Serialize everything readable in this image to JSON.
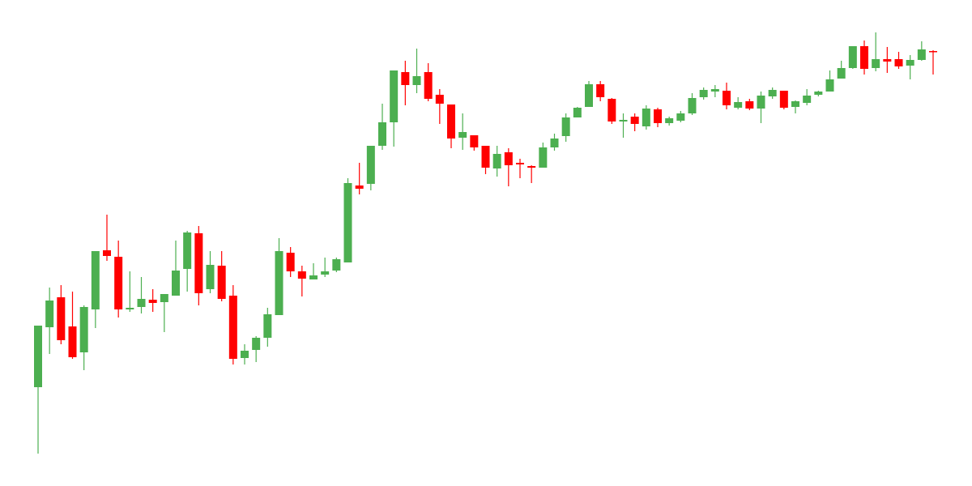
{
  "chart_data": {
    "type": "candlestick",
    "open": [
      122,
      196,
      233,
      197,
      165,
      218,
      291,
      283,
      218,
      221,
      230,
      227,
      235,
      268,
      312,
      243,
      272,
      235,
      158,
      168,
      183,
      211,
      288,
      265,
      255,
      261,
      266,
      276,
      371,
      373,
      420,
      449,
      511,
      495,
      511,
      483,
      471,
      430,
      433,
      420,
      392,
      412,
      399,
      395,
      393,
      418,
      432,
      455,
      468,
      496,
      478,
      450,
      456,
      444,
      465,
      448,
      451,
      460,
      480,
      487,
      488,
      467,
      475,
      466,
      481,
      488,
      468,
      473,
      483,
      487,
      503,
      516,
      543,
      516,
      527,
      527,
      519,
      526,
      537
    ],
    "high": [
      198,
      245,
      248,
      240,
      223,
      290,
      335,
      303,
      265,
      258,
      243,
      237,
      303,
      315,
      321,
      290,
      290,
      248,
      175,
      185,
      220,
      306,
      295,
      272,
      275,
      282,
      282,
      380,
      399,
      420,
      472,
      513,
      525,
      540,
      522,
      490,
      471,
      460,
      433,
      420,
      420,
      417,
      404,
      396,
      424,
      435,
      460,
      468,
      500,
      500,
      479,
      460,
      460,
      470,
      467,
      456,
      463,
      485,
      492,
      495,
      498,
      480,
      478,
      487,
      492,
      488,
      476,
      490,
      488,
      513,
      525,
      543,
      550,
      560,
      542,
      536,
      532,
      549,
      538
    ],
    "low": [
      40,
      163,
      175,
      157,
      143,
      195,
      278,
      208,
      215,
      213,
      215,
      190,
      235,
      240,
      223,
      238,
      228,
      150,
      150,
      153,
      172,
      211,
      258,
      234,
      255,
      258,
      264,
      276,
      360,
      365,
      415,
      419,
      470,
      485,
      475,
      447,
      417,
      415,
      414,
      385,
      382,
      370,
      380,
      374,
      393,
      414,
      425,
      455,
      468,
      475,
      447,
      430,
      438,
      440,
      443,
      445,
      449,
      458,
      477,
      480,
      465,
      465,
      464,
      448,
      478,
      465,
      460,
      470,
      481,
      487,
      503,
      515,
      508,
      512,
      510,
      515,
      502,
      525,
      508
    ],
    "close": [
      198,
      229,
      180,
      159,
      221,
      290,
      284,
      218,
      220,
      231,
      226,
      237,
      266,
      313,
      238,
      273,
      231,
      157,
      167,
      183,
      212,
      290,
      265,
      256,
      260,
      265,
      280,
      374,
      367,
      420,
      449,
      513,
      495,
      506,
      478,
      472,
      429,
      437,
      418,
      393,
      410,
      396,
      397,
      393,
      418,
      429,
      455,
      467,
      496,
      480,
      450,
      452,
      447,
      466,
      448,
      454,
      460,
      479,
      489,
      490,
      470,
      474,
      466,
      482,
      489,
      467,
      475,
      482,
      487,
      502,
      516,
      543,
      515,
      527,
      524,
      518,
      526,
      539,
      536
    ],
    "ylim": [
      0,
      600
    ],
    "up_color": "#4caf50",
    "down_color": "#ff0000"
  }
}
